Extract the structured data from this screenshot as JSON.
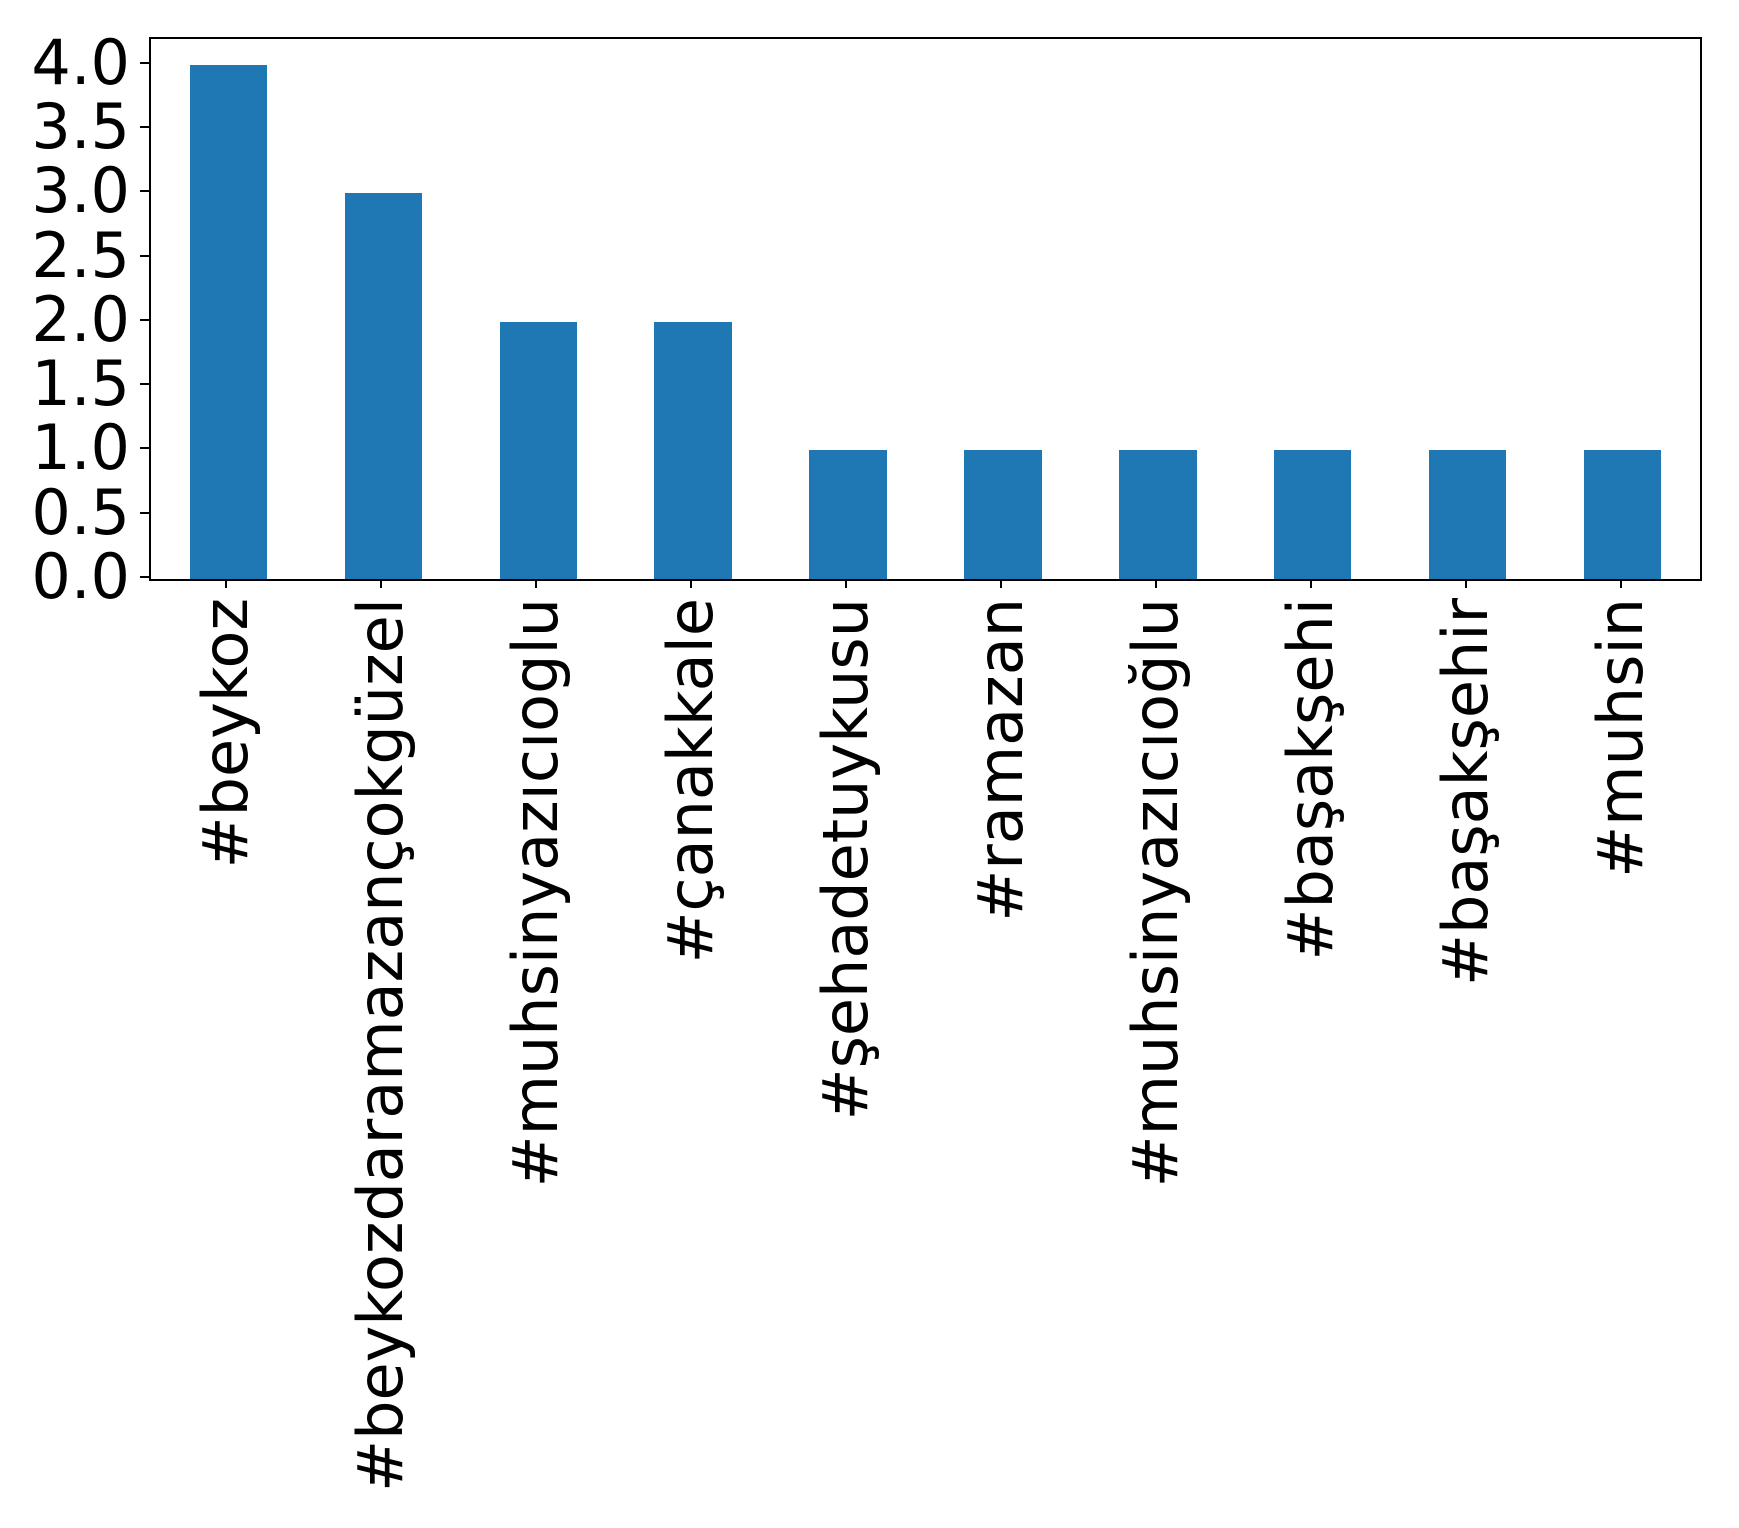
{
  "chart_data": {
    "type": "bar",
    "title": "",
    "xlabel": "",
    "ylabel": "",
    "categories": [
      "#beykoz",
      "#beykozdaramazançokgüzel",
      "#muhsinyazıcıoglu",
      "#çanakkale",
      "#şehadetuykusu",
      "#ramazan",
      "#muhsinyazıcıoğlu",
      "#başakşehi",
      "#başakşehir",
      "#muhsin"
    ],
    "values": [
      4,
      3,
      2,
      2,
      1,
      1,
      1,
      1,
      1,
      1
    ],
    "ytick_labels": [
      "0.0",
      "0.5",
      "1.0",
      "1.5",
      "2.0",
      "2.5",
      "3.0",
      "3.5",
      "4.0"
    ],
    "ylim": [
      0,
      4.2
    ],
    "grid": false,
    "legend": "none",
    "x_label_rotation_deg": 90,
    "bar_color": "#1f77b4",
    "axis_color": "#000000"
  }
}
